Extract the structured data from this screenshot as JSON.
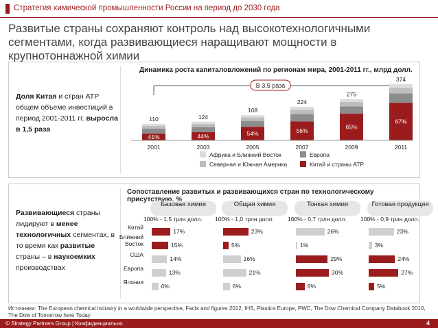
{
  "header": {
    "title": "Стратегия химической промышленности России на период до 2030 года"
  },
  "headline": "Развитые страны сохраняют контроль над высокотехнологичными сегментами, когда развивающиеся наращивают мощности в крупнотоннажной химии",
  "panel1": {
    "caption_parts": [
      "Доля Китая ",
      "и",
      " стран АТР общем объеме инвестиций в период 2001-2011 гг. ",
      "выросла в 1,5 раза"
    ],
    "chart_title": "Динамика роста капиталовложений по регионам мира, 2001-2011 гг., млрд долл.",
    "growth_badge": "В 3,5 раза"
  },
  "chart_data": [
    {
      "type": "bar",
      "title": "Динамика роста капиталовложений по регионам мира, 2001-2011 гг., млрд долл.",
      "categories": [
        "2001",
        "2003",
        "2005",
        "2007",
        "2009",
        "2011"
      ],
      "totals": [
        110,
        124,
        168,
        224,
        275,
        374
      ],
      "china_share_labels": [
        "41%",
        "44%",
        "54%",
        "56%",
        "65%",
        "67%"
      ],
      "china_share": [
        0.41,
        0.44,
        0.54,
        0.56,
        0.65,
        0.67
      ],
      "series": [
        {
          "name": "Китай и страны АТР",
          "color": "#9b1c1c"
        },
        {
          "name": "Европа",
          "color": "#8c8c8c"
        },
        {
          "name": "Северная и Южная Америка",
          "color": "#bdbdbd"
        },
        {
          "name": "Африка и Ближний Восток",
          "color": "#dcdcdc"
        }
      ],
      "legend": [
        "Африка и Ближний Восток",
        "Европа",
        "Северная и Южная Америка",
        "Китай и страны АТР"
      ]
    },
    {
      "type": "bar",
      "title": "Сопоставление развитых и развивающихся стран по технологическому присутствию, %",
      "countries": [
        "Китай",
        "Ближний Восток",
        "США",
        "Европа",
        "Япония"
      ],
      "groups": [
        {
          "name": "Базовая химия",
          "subtitle": "100% - 1,5 трлн долл.",
          "labels": [
            "17%",
            "15%",
            "14%",
            "13%",
            "6%"
          ],
          "values": [
            17,
            15,
            14,
            13,
            6
          ]
        },
        {
          "name": "Общая химия",
          "subtitle": "100% - 1,0 трлн долл.",
          "labels": [
            "23%",
            "5%",
            "16%",
            "21%",
            "6%"
          ],
          "values": [
            23,
            5,
            16,
            21,
            6
          ]
        },
        {
          "name": "Тонкая химия",
          "subtitle": "100% - 0,7 трлн долл.",
          "labels": [
            "26%",
            "1%",
            "29%",
            "30%",
            "8%"
          ],
          "values": [
            26,
            1,
            29,
            30,
            8
          ]
        },
        {
          "name": "Готовая продукция",
          "subtitle": "100% - 0,9 трлн долл.",
          "labels": [
            "23%",
            "3%",
            "24%",
            "27%",
            "5%"
          ],
          "values": [
            23,
            3,
            24,
            27,
            5
          ]
        }
      ]
    }
  ],
  "panel2": {
    "caption_parts": [
      "Развивающиеся",
      " страны лидируют в ",
      "менее технологичных",
      " сегментах, в то время как ",
      "развитые",
      " страны – в ",
      "наукоемких",
      " производствах"
    ],
    "chart_title": "Сопоставление развитых и развивающихся стран по технологическому присутствию, %",
    "country_labels": [
      "Китай",
      "Ближний",
      "Восток",
      "США",
      "Европа",
      "Япония"
    ]
  },
  "sources": "Источники: The European chemical industry in a worldwide perspective, Facts and figures 2012, IHS, Plastics Europe, PWC, The Dow Chemical Company Databook 2010, The Dow of Tomorrow here Today",
  "footer": {
    "text": "© Strategy Partners Group | Конфиденциально",
    "page": "4"
  }
}
